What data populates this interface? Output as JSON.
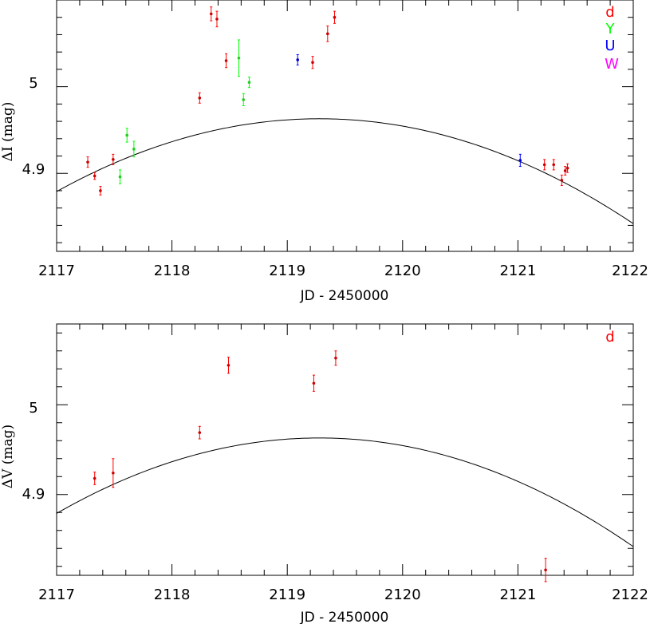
{
  "chart_data": [
    {
      "type": "scatter",
      "xlabel": "JD - 2450000",
      "ylabel": "ΔI (mag)",
      "xlim": [
        2117,
        2122
      ],
      "ylim": [
        4.81,
        5.1
      ],
      "x_ticks": [
        "2117",
        "2118",
        "2119",
        "2120",
        "2121",
        "2122"
      ],
      "y_ticks": [
        "4.9",
        "5"
      ],
      "y_reversed": false,
      "legend_position": "top-right",
      "curve": {
        "peak_x": 2119.28,
        "peak_y": 4.963,
        "left_x": 2117,
        "left_y": 4.879,
        "right_x": 2122,
        "right_y": 4.842
      },
      "series": [
        {
          "name": "d",
          "color": "#ff0000",
          "marker_color": "#cc0000",
          "points": [
            {
              "x": 2117.27,
              "y": 4.913,
              "err": 0.006
            },
            {
              "x": 2117.33,
              "y": 4.897,
              "err": 0.004
            },
            {
              "x": 2117.38,
              "y": 4.88,
              "err": 0.005
            },
            {
              "x": 2117.49,
              "y": 4.916,
              "err": 0.006
            },
            {
              "x": 2118.24,
              "y": 4.987,
              "err": 0.006
            },
            {
              "x": 2118.34,
              "y": 5.084,
              "err": 0.008
            },
            {
              "x": 2118.39,
              "y": 5.078,
              "err": 0.009
            },
            {
              "x": 2118.47,
              "y": 5.03,
              "err": 0.008
            },
            {
              "x": 2119.22,
              "y": 5.028,
              "err": 0.007
            },
            {
              "x": 2119.35,
              "y": 5.061,
              "err": 0.009
            },
            {
              "x": 2119.41,
              "y": 5.08,
              "err": 0.007
            },
            {
              "x": 2121.23,
              "y": 4.91,
              "err": 0.006
            },
            {
              "x": 2121.31,
              "y": 4.91,
              "err": 0.006
            },
            {
              "x": 2121.38,
              "y": 4.892,
              "err": 0.006
            },
            {
              "x": 2121.41,
              "y": 4.903,
              "err": 0.005
            },
            {
              "x": 2121.43,
              "y": 4.906,
              "err": 0.005
            }
          ]
        },
        {
          "name": "Y",
          "color": "#00ff00",
          "marker_color": "#22cc22",
          "points": [
            {
              "x": 2117.55,
              "y": 4.896,
              "err": 0.008
            },
            {
              "x": 2117.61,
              "y": 4.944,
              "err": 0.008
            },
            {
              "x": 2117.67,
              "y": 4.928,
              "err": 0.009
            },
            {
              "x": 2118.58,
              "y": 5.033,
              "err": 0.021
            },
            {
              "x": 2118.62,
              "y": 4.985,
              "err": 0.007
            },
            {
              "x": 2118.67,
              "y": 5.005,
              "err": 0.006
            }
          ]
        },
        {
          "name": "U",
          "color": "#0000ff",
          "marker_color": "#0000cc",
          "points": [
            {
              "x": 2119.09,
              "y": 5.031,
              "err": 0.006
            },
            {
              "x": 2121.02,
              "y": 4.915,
              "err": 0.007
            }
          ]
        },
        {
          "name": "W",
          "color": "#ff00ff",
          "marker_color": "#cc00cc",
          "points": []
        }
      ]
    },
    {
      "type": "scatter",
      "xlabel": "JD - 2450000",
      "ylabel": "ΔV (mag)",
      "xlim": [
        2117,
        2122
      ],
      "ylim": [
        4.81,
        5.09
      ],
      "x_ticks": [
        "2117",
        "2118",
        "2119",
        "2120",
        "2121",
        "2122"
      ],
      "y_ticks": [
        "4.9",
        "5"
      ],
      "legend_position": "top-right",
      "curve": {
        "peak_x": 2119.28,
        "peak_y": 4.963,
        "left_x": 2117,
        "left_y": 4.879,
        "right_x": 2122,
        "right_y": 4.842
      },
      "series": [
        {
          "name": "d",
          "color": "#ff0000",
          "marker_color": "#cc0000",
          "points": [
            {
              "x": 2117.33,
              "y": 4.918,
              "err": 0.007
            },
            {
              "x": 2117.49,
              "y": 4.924,
              "err": 0.016
            },
            {
              "x": 2118.24,
              "y": 4.969,
              "err": 0.007
            },
            {
              "x": 2118.49,
              "y": 5.044,
              "err": 0.009
            },
            {
              "x": 2119.23,
              "y": 5.024,
              "err": 0.009
            },
            {
              "x": 2119.42,
              "y": 5.052,
              "err": 0.008
            },
            {
              "x": 2121.24,
              "y": 4.816,
              "err": 0.013
            }
          ]
        }
      ]
    }
  ]
}
